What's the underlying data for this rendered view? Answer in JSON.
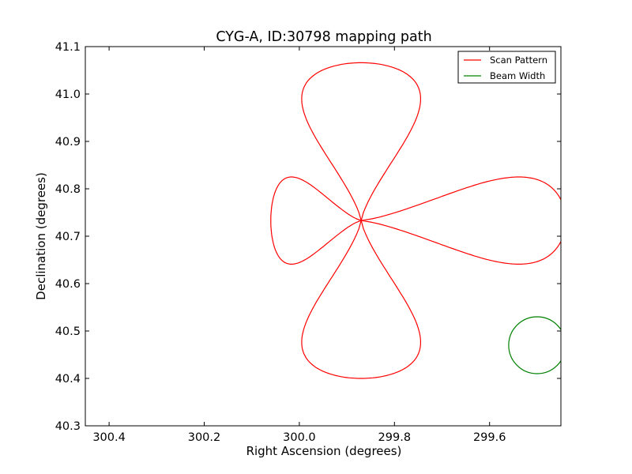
{
  "chart_data": {
    "type": "line",
    "title": "CYG-A, ID:30798 mapping path",
    "xlabel": "Right Ascension (degrees)",
    "ylabel": "Declination (degrees)",
    "xlim": [
      300.45,
      299.45
    ],
    "ylim": [
      40.3,
      41.1
    ],
    "x_inverted": true,
    "xticks": [
      300.4,
      300.2,
      300.0,
      299.8,
      299.6
    ],
    "xtick_labels": [
      "300.4",
      "300.2",
      "300.0",
      "299.8",
      "299.6"
    ],
    "yticks": [
      40.3,
      40.4,
      40.5,
      40.6,
      40.7,
      40.8,
      40.9,
      41.0,
      41.1
    ],
    "ytick_labels": [
      "40.3",
      "40.4",
      "40.5",
      "40.6",
      "40.7",
      "40.8",
      "40.9",
      "41.0",
      "41.1"
    ],
    "grid": false,
    "legend_position": "top-right",
    "series": [
      {
        "name": "Scan Pattern",
        "color": "#ff0000",
        "center": [
          299.87,
          40.733
        ],
        "lobes": [
          {
            "direction": "west",
            "extent_deg": 0.19,
            "half_width_deg": 0.092
          },
          {
            "direction": "north",
            "extent_deg": 0.333,
            "half_width_deg": 0.125
          },
          {
            "direction": "east",
            "extent_deg": 0.43,
            "half_width_deg": 0.092
          },
          {
            "direction": "south",
            "extent_deg": 0.333,
            "half_width_deg": 0.125
          }
        ]
      },
      {
        "name": "Beam Width",
        "color": "#008000",
        "shape": "circle",
        "center": [
          299.5,
          40.47
        ],
        "radius_deg": 0.06
      }
    ]
  }
}
